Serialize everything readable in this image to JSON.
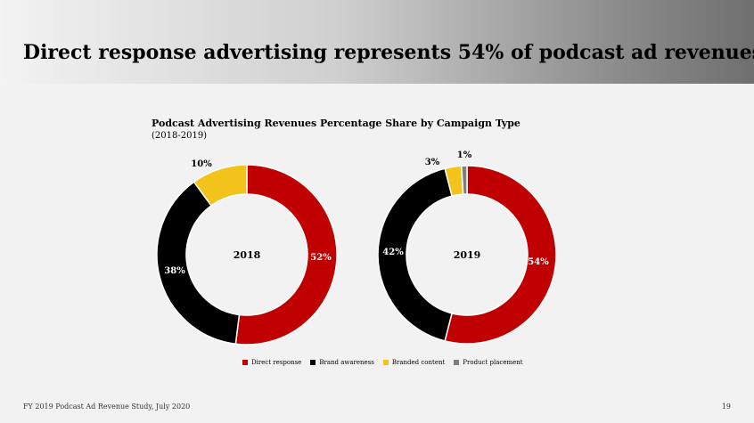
{
  "slide": {
    "title": "Direct response advertising represents 54% of podcast ad revenues",
    "footer_source": "FY 2019 Podcast Ad Revenue Study, July 2020",
    "page_number": "19"
  },
  "chart_data": {
    "type": "pie",
    "title": "Podcast Advertising Revenues Percentage Share by Campaign Type",
    "subtitle": "(2018-2019)",
    "categories": [
      "Direct response",
      "Brand awareness",
      "Branded content",
      "Product placement"
    ],
    "colors": [
      "#c00000",
      "#000000",
      "#f2c31b",
      "#7f7f7f"
    ],
    "legend_position": "bottom",
    "series": [
      {
        "name": "2018",
        "values": [
          52,
          38,
          10,
          0
        ],
        "labels": [
          "52%",
          "38%",
          "10%",
          ""
        ]
      },
      {
        "name": "2019",
        "values": [
          54,
          42,
          3,
          1
        ],
        "labels": [
          "54%",
          "42%",
          "3%",
          "1%"
        ]
      }
    ]
  }
}
